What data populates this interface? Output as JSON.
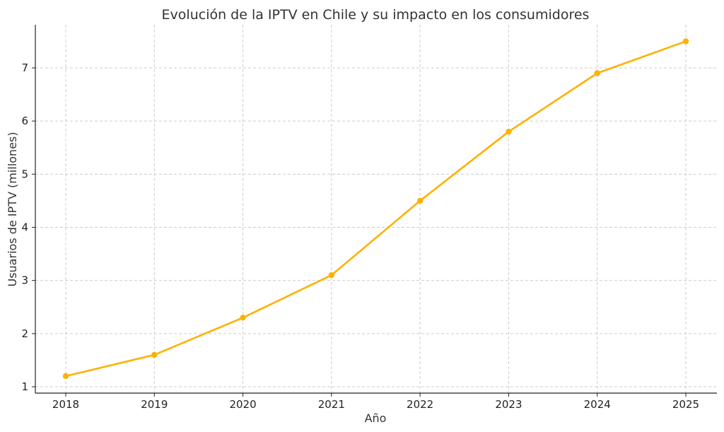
{
  "chart_data": {
    "type": "line",
    "title": "Evolución de la IPTV en Chile y su impacto en los consumidores",
    "xlabel": "Año",
    "ylabel": "Usuarios de IPTV (millones)",
    "x": [
      "2018",
      "2019",
      "2020",
      "2021",
      "2022",
      "2023",
      "2024",
      "2025"
    ],
    "series": [
      {
        "values": [
          1.2,
          1.6,
          2.3,
          3.1,
          4.5,
          5.8,
          6.9,
          7.5
        ]
      }
    ],
    "yticks": [
      1,
      2,
      3,
      4,
      5,
      6,
      7
    ],
    "ylim": [
      0.85,
      7.85
    ],
    "grid": true,
    "colors": {
      "line": "#FFB000",
      "marker": "#FFB000",
      "grid": "#cccccc",
      "axis": "#222222"
    }
  }
}
